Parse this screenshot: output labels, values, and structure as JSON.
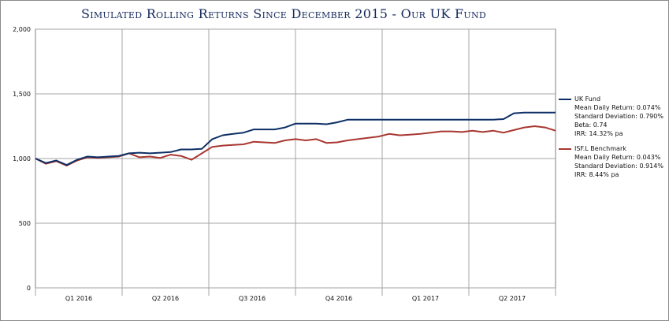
{
  "colors": {
    "uk_fund": "#0e2f66",
    "benchmark": "#a93731",
    "grid": "#a6a6a6",
    "title": "#14285c"
  },
  "chart_data": {
    "type": "line",
    "title": "Simulated Rolling Returns Since December 2015 - Our UK Fund",
    "xlabel": "",
    "ylabel": "",
    "ylim": [
      0,
      2000
    ],
    "yticks": [
      "0",
      "500",
      "1,000",
      "1,500",
      "2,000"
    ],
    "yticks_values": [
      0,
      500,
      1000,
      1500,
      2000
    ],
    "xticks": [
      "Q1 2016",
      "Q2 2016",
      "Q3 2016",
      "Q4 2016",
      "Q1 2017",
      "Q2 2017"
    ],
    "grid": true,
    "legend_position": "right",
    "x": [
      0,
      2,
      4,
      6,
      8,
      10,
      12,
      14,
      16,
      18,
      20,
      22,
      24,
      26,
      28,
      30,
      32,
      34,
      36,
      38,
      40,
      42,
      44,
      46,
      48,
      50,
      52,
      54,
      56,
      58,
      60,
      62,
      64,
      66,
      68,
      70,
      72,
      74,
      76,
      78,
      80,
      82,
      84,
      86,
      88,
      90,
      92,
      94,
      96,
      98,
      100
    ],
    "series": [
      {
        "name": "UK Fund",
        "color": "#0e2f66",
        "values": [
          1000,
          965,
          985,
          950,
          990,
          1015,
          1010,
          1015,
          1020,
          1040,
          1045,
          1040,
          1045,
          1050,
          1070,
          1070,
          1075,
          1150,
          1180,
          1190,
          1200,
          1225,
          1225,
          1225,
          1240,
          1270,
          1270,
          1270,
          1265,
          1280,
          1300,
          1300,
          1300,
          1300,
          1300,
          1300,
          1300,
          1300,
          1300,
          1300,
          1300,
          1300,
          1300,
          1300,
          1300,
          1305,
          1350,
          1355,
          1355,
          1355,
          1355
        ],
        "stats": [
          "Mean Daily Return: 0.074%",
          "Standard Deviation: 0.790%",
          "Beta: 0.74",
          "IRR: 14.32% pa"
        ]
      },
      {
        "name": "ISF.L Benchmark",
        "color": "#a93731",
        "values": [
          1000,
          960,
          980,
          945,
          985,
          1010,
          1005,
          1010,
          1015,
          1040,
          1010,
          1015,
          1005,
          1030,
          1020,
          990,
          1040,
          1090,
          1100,
          1105,
          1110,
          1130,
          1125,
          1120,
          1140,
          1150,
          1140,
          1150,
          1120,
          1125,
          1140,
          1150,
          1160,
          1170,
          1190,
          1180,
          1185,
          1190,
          1200,
          1210,
          1210,
          1205,
          1215,
          1205,
          1215,
          1200,
          1220,
          1240,
          1250,
          1240,
          1215
        ],
        "stats": [
          "Mean Daily Return: 0.043%",
          "Standard Deviation: 0.914%",
          "IRR: 8.44% pa"
        ]
      }
    ]
  }
}
